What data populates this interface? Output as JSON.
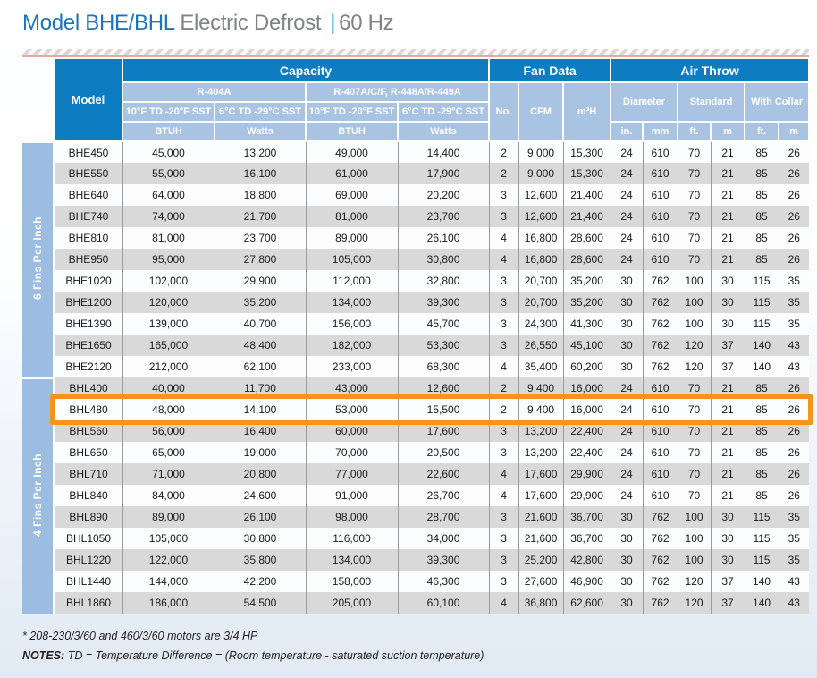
{
  "title": {
    "model": "Model BHE/BHL",
    "subtitle": "Electric Defrost",
    "separator": "|",
    "frequency": "60 Hz"
  },
  "table": {
    "headers": {
      "model": "Model",
      "capacity": "Capacity",
      "fan_data": "Fan Data",
      "air_throw": "Air Throw",
      "refrigerant_1": "R-404A",
      "refrigerant_2": "R-407A/C/F, R-448A/R-449A",
      "condition_f": "10°F TD -20°F SST",
      "condition_c": "6°C TD -29°C SST",
      "btuh": "BTUH",
      "watts": "Watts",
      "no": "No.",
      "cfm": "CFM",
      "m3h": "m³H",
      "diameter": "Diameter",
      "standard": "Standard",
      "with_collar": "With Collar",
      "unit_in": "in.",
      "unit_mm": "mm",
      "unit_ft": "ft.",
      "unit_m": "m",
      "unit_ft2": "ft.",
      "unit_m2": "m"
    },
    "column_keys": [
      "model",
      "r404a_btuh",
      "r404a_watts",
      "r407a_btuh",
      "r407a_watts",
      "fans_no",
      "cfm",
      "m3h",
      "diameter_in",
      "diameter_mm",
      "standard_ft",
      "standard_m",
      "collar_ft",
      "collar_m"
    ],
    "highlighted_model": "BHL480",
    "groups": [
      {
        "label": "6 Fins Per Inch",
        "rows": [
          [
            "BHE450",
            "45,000",
            "13,200",
            "49,000",
            "14,400",
            "2",
            "9,000",
            "15,300",
            "24",
            "610",
            "70",
            "21",
            "85",
            "26"
          ],
          [
            "BHE550",
            "55,000",
            "16,100",
            "61,000",
            "17,900",
            "2",
            "9,000",
            "15,300",
            "24",
            "610",
            "70",
            "21",
            "85",
            "26"
          ],
          [
            "BHE640",
            "64,000",
            "18,800",
            "69,000",
            "20,200",
            "3",
            "12,600",
            "21,400",
            "24",
            "610",
            "70",
            "21",
            "85",
            "26"
          ],
          [
            "BHE740",
            "74,000",
            "21,700",
            "81,000",
            "23,700",
            "3",
            "12,600",
            "21,400",
            "24",
            "610",
            "70",
            "21",
            "85",
            "26"
          ],
          [
            "BHE810",
            "81,000",
            "23,700",
            "89,000",
            "26,100",
            "4",
            "16,800",
            "28,600",
            "24",
            "610",
            "70",
            "21",
            "85",
            "26"
          ],
          [
            "BHE950",
            "95,000",
            "27,800",
            "105,000",
            "30,800",
            "4",
            "16,800",
            "28,600",
            "24",
            "610",
            "70",
            "21",
            "85",
            "26"
          ],
          [
            "BHE1020",
            "102,000",
            "29,900",
            "112,000",
            "32,800",
            "3",
            "20,700",
            "35,200",
            "30",
            "762",
            "100",
            "30",
            "115",
            "35"
          ],
          [
            "BHE1200",
            "120,000",
            "35,200",
            "134,000",
            "39,300",
            "3",
            "20,700",
            "35,200",
            "30",
            "762",
            "100",
            "30",
            "115",
            "35"
          ],
          [
            "BHE1390",
            "139,000",
            "40,700",
            "156,000",
            "45,700",
            "3",
            "24,300",
            "41,300",
            "30",
            "762",
            "100",
            "30",
            "115",
            "35"
          ],
          [
            "BHE1650",
            "165,000",
            "48,400",
            "182,000",
            "53,300",
            "3",
            "26,550",
            "45,100",
            "30",
            "762",
            "120",
            "37",
            "140",
            "43"
          ],
          [
            "BHE2120",
            "212,000",
            "62,100",
            "233,000",
            "68,300",
            "4",
            "35,400",
            "60,200",
            "30",
            "762",
            "120",
            "37",
            "140",
            "43"
          ]
        ]
      },
      {
        "label": "4 Fins Per Inch",
        "rows": [
          [
            "BHL400",
            "40,000",
            "11,700",
            "43,000",
            "12,600",
            "2",
            "9,400",
            "16,000",
            "24",
            "610",
            "70",
            "21",
            "85",
            "26"
          ],
          [
            "BHL480",
            "48,000",
            "14,100",
            "53,000",
            "15,500",
            "2",
            "9,400",
            "16,000",
            "24",
            "610",
            "70",
            "21",
            "85",
            "26"
          ],
          [
            "BHL560",
            "56,000",
            "16,400",
            "60,000",
            "17,600",
            "3",
            "13,200",
            "22,400",
            "24",
            "610",
            "70",
            "21",
            "85",
            "26"
          ],
          [
            "BHL650",
            "65,000",
            "19,000",
            "70,000",
            "20,500",
            "3",
            "13,200",
            "22,400",
            "24",
            "610",
            "70",
            "21",
            "85",
            "26"
          ],
          [
            "BHL710",
            "71,000",
            "20,800",
            "77,000",
            "22,600",
            "4",
            "17,600",
            "29,900",
            "24",
            "610",
            "70",
            "21",
            "85",
            "26"
          ],
          [
            "BHL840",
            "84,000",
            "24,600",
            "91,000",
            "26,700",
            "4",
            "17,600",
            "29,900",
            "24",
            "610",
            "70",
            "21",
            "85",
            "26"
          ],
          [
            "BHL890",
            "89,000",
            "26,100",
            "98,000",
            "28,700",
            "3",
            "21,600",
            "36,700",
            "30",
            "762",
            "100",
            "30",
            "115",
            "35"
          ],
          [
            "BHL1050",
            "105,000",
            "30,800",
            "116,000",
            "34,000",
            "3",
            "21,600",
            "36,700",
            "30",
            "762",
            "100",
            "30",
            "115",
            "35"
          ],
          [
            "BHL1220",
            "122,000",
            "35,800",
            "134,000",
            "39,300",
            "3",
            "25,200",
            "42,800",
            "30",
            "762",
            "100",
            "30",
            "115",
            "35"
          ],
          [
            "BHL1440",
            "144,000",
            "42,200",
            "158,000",
            "46,300",
            "3",
            "27,600",
            "46,900",
            "30",
            "762",
            "120",
            "37",
            "140",
            "43"
          ],
          [
            "BHL1860",
            "186,000",
            "54,500",
            "205,000",
            "60,100",
            "4",
            "36,800",
            "62,600",
            "30",
            "762",
            "120",
            "37",
            "140",
            "43"
          ]
        ]
      }
    ]
  },
  "footnotes": {
    "line1": "* 208-230/3/60 and 460/3/60 motors are 3/4 HP",
    "line2_label": "NOTES:",
    "line2_text": " TD = Temperature Difference = (Room temperature - saturated suction temperature)"
  },
  "colors": {
    "header_blue": "#0E7CC1",
    "subheader_blue": "#A9C4E3",
    "group_band_blue": "#9CBCE1",
    "row_gray": "#D9D9D9",
    "highlight_orange": "#F7941E",
    "title_blue": "#1B75BC",
    "title_gray": "#808285",
    "stripe_underline_red": "#E8A79F"
  }
}
